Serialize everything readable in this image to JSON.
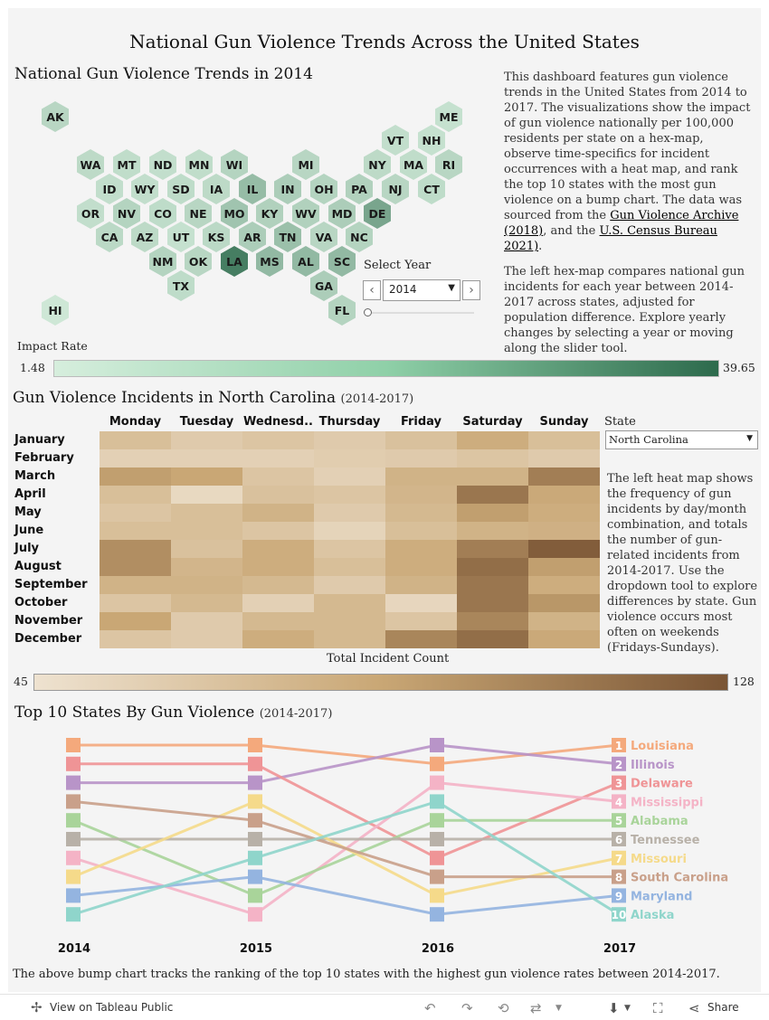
{
  "title": "National Gun Violence Trends Across the United States",
  "hex_section": {
    "title": "National Gun Violence Trends in 2014",
    "select_year_label": "Select Year",
    "selected_year": "2014",
    "impact_label": "Impact Rate",
    "legend_min": "1.48",
    "legend_max": "39.65",
    "colors": {
      "low": "#d6eedd",
      "high": "#2d6a4c"
    },
    "states": [
      "AK",
      "ME",
      "VT",
      "NH",
      "WA",
      "MT",
      "ND",
      "MN",
      "WI",
      "MI",
      "NY",
      "MA",
      "RI",
      "ID",
      "WY",
      "SD",
      "IA",
      "IL",
      "IN",
      "OH",
      "PA",
      "NJ",
      "CT",
      "OR",
      "NV",
      "CO",
      "NE",
      "MO",
      "KY",
      "WV",
      "MD",
      "DE",
      "CA",
      "AZ",
      "UT",
      "KS",
      "AR",
      "TN",
      "VA",
      "NC",
      "NM",
      "OK",
      "LA",
      "MS",
      "AL",
      "SC",
      "TX",
      "GA",
      "HI",
      "FL"
    ],
    "impact": {
      "AK": 0.18,
      "ME": 0.1,
      "VT": 0.12,
      "NH": 0.1,
      "WA": 0.15,
      "MT": 0.13,
      "ND": 0.12,
      "MN": 0.13,
      "WI": 0.2,
      "MI": 0.18,
      "NY": 0.15,
      "MA": 0.13,
      "RI": 0.18,
      "ID": 0.12,
      "WY": 0.12,
      "SD": 0.14,
      "IA": 0.15,
      "IL": 0.38,
      "IN": 0.25,
      "OH": 0.2,
      "PA": 0.22,
      "NJ": 0.18,
      "CT": 0.14,
      "OR": 0.12,
      "NV": 0.2,
      "CO": 0.14,
      "NE": 0.18,
      "MO": 0.32,
      "KY": 0.22,
      "WV": 0.22,
      "MD": 0.25,
      "DE": 0.55,
      "CA": 0.16,
      "AZ": 0.15,
      "UT": 0.1,
      "KS": 0.16,
      "AR": 0.25,
      "TN": 0.35,
      "VA": 0.18,
      "NC": 0.2,
      "NM": 0.2,
      "OK": 0.18,
      "LA": 0.85,
      "MS": 0.4,
      "AL": 0.4,
      "SC": 0.4,
      "TX": 0.14,
      "GA": 0.25,
      "HI": 0.05,
      "FL": 0.2
    }
  },
  "intro_text": {
    "p1_start": "This dashboard features gun violence trends in the United States from 2014 to 2017. The visualizations show the impact of gun violence nationally per 100,000 residents per state on a hex-map,  observe time-specifics for incident occurrences with a heat map, and rank the top 10 states with the most gun violence on a bump chart. The data was sourced from the ",
    "link1": "Gun Violence Archive (2018)",
    "p1_mid": ", and the ",
    "link2": "U.S. Census Bureau 2021)",
    "p1_end": ".",
    "p2": "The left hex-map compares national gun incidents for each year between 2014-2017 across states, adjusted for population difference. Explore yearly changes by selecting a year or moving along the slider tool."
  },
  "heat_section": {
    "title": "Gun Violence Incidents in North Carolina",
    "subtitle": "(2014-2017)",
    "days": [
      "Monday",
      "Tuesday",
      "Wednesd..",
      "Thursday",
      "Friday",
      "Saturday",
      "Sunday"
    ],
    "months": [
      "January",
      "February",
      "March",
      "April",
      "May",
      "June",
      "July",
      "August",
      "September",
      "October",
      "November",
      "December"
    ],
    "values": [
      [
        0.3,
        0.2,
        0.25,
        0.2,
        0.28,
        0.45,
        0.3
      ],
      [
        0.15,
        0.15,
        0.15,
        0.18,
        0.2,
        0.25,
        0.2
      ],
      [
        0.55,
        0.5,
        0.25,
        0.15,
        0.4,
        0.4,
        0.75
      ],
      [
        0.3,
        0.08,
        0.28,
        0.25,
        0.38,
        0.8,
        0.48
      ],
      [
        0.25,
        0.3,
        0.4,
        0.2,
        0.35,
        0.55,
        0.45
      ],
      [
        0.3,
        0.3,
        0.25,
        0.12,
        0.3,
        0.4,
        0.42
      ],
      [
        0.65,
        0.28,
        0.45,
        0.25,
        0.45,
        0.75,
        0.95
      ],
      [
        0.65,
        0.38,
        0.45,
        0.3,
        0.45,
        0.85,
        0.55
      ],
      [
        0.4,
        0.4,
        0.35,
        0.2,
        0.4,
        0.8,
        0.45
      ],
      [
        0.25,
        0.35,
        0.15,
        0.35,
        0.1,
        0.8,
        0.6
      ],
      [
        0.5,
        0.2,
        0.35,
        0.35,
        0.25,
        0.7,
        0.4
      ],
      [
        0.25,
        0.2,
        0.45,
        0.35,
        0.7,
        0.85,
        0.48
      ]
    ],
    "colors": {
      "low": "#eee2d0",
      "mid": "#c9a775",
      "high": "#7a5535"
    },
    "axis_title": "Total Incident Count",
    "legend_min": "45",
    "legend_max": "128",
    "state_label": "State",
    "state_selected": "North Carolina",
    "description": "The left heat map shows the frequency of gun incidents by day/month combination, and totals the number of gun-related incidents from 2014-2017. Use the dropdown tool to explore differences by state. Gun violence occurs most often on weekends (Fridays-Sundays)."
  },
  "chart_data": {
    "type": "line",
    "title": "Top 10 States By Gun Violence",
    "subtitle": "(2014-2017)",
    "x": [
      "2014",
      "2015",
      "2016",
      "2017"
    ],
    "y_axis": "rank",
    "ylim": [
      1,
      10
    ],
    "series": [
      {
        "name": "Louisiana",
        "values": [
          1,
          1,
          2,
          1
        ],
        "color": "#f4a97c"
      },
      {
        "name": "Illinois",
        "values": [
          3,
          3,
          1,
          2
        ],
        "color": "#b894c8"
      },
      {
        "name": "Delaware",
        "values": [
          2,
          2,
          7,
          3
        ],
        "color": "#ef9496"
      },
      {
        "name": "Mississippi",
        "values": [
          7,
          10,
          3,
          4
        ],
        "color": "#f4b3c6"
      },
      {
        "name": "Alabama",
        "values": [
          5,
          9,
          5,
          5
        ],
        "color": "#a9d49a"
      },
      {
        "name": "Tennessee",
        "values": [
          6,
          6,
          6,
          6
        ],
        "color": "#b8b1a8"
      },
      {
        "name": "Missouri",
        "values": [
          8,
          4,
          9,
          7
        ],
        "color": "#f5da8a"
      },
      {
        "name": "South Carolina",
        "values": [
          4,
          5,
          8,
          8
        ],
        "color": "#c9a08a"
      },
      {
        "name": "Maryland",
        "values": [
          9,
          8,
          10,
          9
        ],
        "color": "#94b4e0"
      },
      {
        "name": "Alaska",
        "values": [
          10,
          7,
          4,
          10
        ],
        "color": "#8fd5cb"
      }
    ]
  },
  "bump_caption": "The above bump chart tracks the ranking of the top 10 states with the highest gun violence rates between 2014-2017.",
  "footer": {
    "view_label": "View on Tableau Public",
    "share_label": "Share"
  }
}
